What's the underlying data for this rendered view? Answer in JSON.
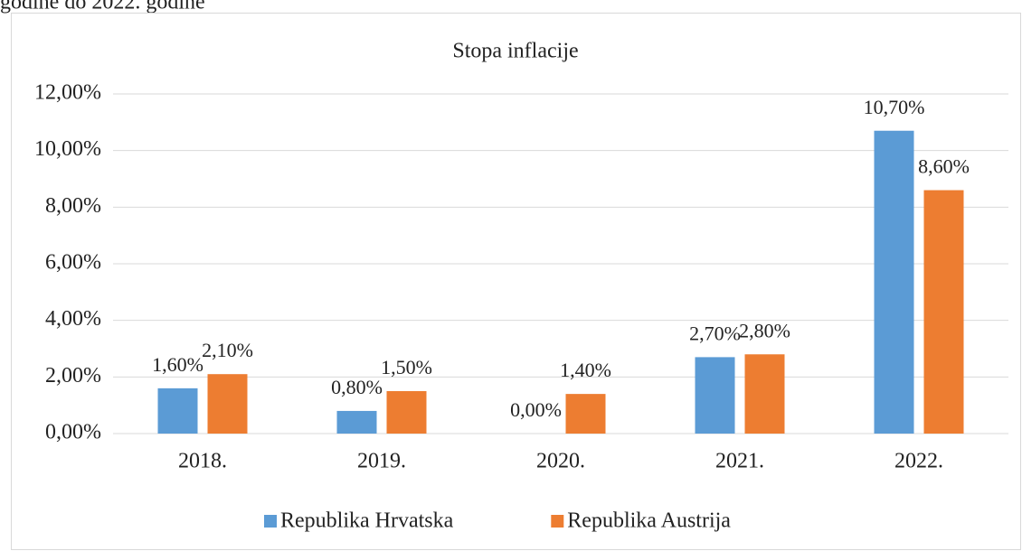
{
  "caption": "godine do 2022. godine",
  "chart_data": {
    "type": "bar",
    "title": "Stopa inflacije",
    "categories": [
      "2018.",
      "2019.",
      "2020.",
      "2021.",
      "2022."
    ],
    "series": [
      {
        "name": "Republika Hrvatska",
        "color": "#5b9bd5",
        "values": [
          1.6,
          0.8,
          0.0,
          2.7,
          10.7
        ],
        "value_labels": [
          "1,60%",
          "0,80%",
          "0,00%",
          "2,70%",
          "10,70%"
        ]
      },
      {
        "name": "Republika Austrija",
        "color": "#ed7d31",
        "values": [
          2.1,
          1.5,
          1.4,
          2.8,
          8.6
        ],
        "value_labels": [
          "2,10%",
          "1,50%",
          "1,40%",
          "2,80%",
          "8,60%"
        ]
      }
    ],
    "ylim": [
      0,
      12
    ],
    "yticks": [
      {
        "value": 0,
        "label": "0,00%"
      },
      {
        "value": 2,
        "label": "2,00%"
      },
      {
        "value": 4,
        "label": "4,00%"
      },
      {
        "value": 6,
        "label": "6,00%"
      },
      {
        "value": 8,
        "label": "8,00%"
      },
      {
        "value": 10,
        "label": "10,00%"
      },
      {
        "value": 12,
        "label": "12,00%"
      }
    ],
    "grid": true,
    "legend": "bottom"
  }
}
